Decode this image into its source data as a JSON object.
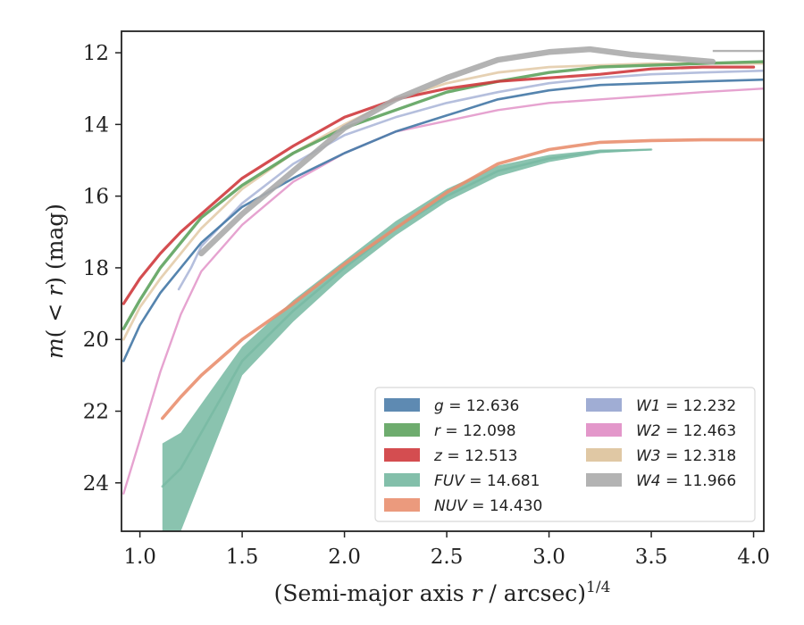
{
  "chart_data": {
    "type": "line",
    "xlabel": "(Semi-major axis r / arcsec)^{1/4}",
    "ylabel": "m(< r) (mag)",
    "xlim": [
      0.91,
      4.05
    ],
    "ylim": [
      25.35,
      11.4
    ],
    "y_inverted": true,
    "xticks": [
      "1.0",
      "1.5",
      "2.0",
      "2.5",
      "3.0",
      "3.5",
      "4.0"
    ],
    "yticks": [
      "12",
      "14",
      "16",
      "18",
      "20",
      "22",
      "24"
    ],
    "grid": false,
    "legend_position": "lower-right",
    "series": [
      {
        "name": "g = 12.636",
        "band": "g",
        "value": "12.636",
        "color": "#4c7daa",
        "x": [
          0.92,
          1.0,
          1.1,
          1.2,
          1.3,
          1.5,
          1.75,
          2.0,
          2.25,
          2.5,
          2.75,
          3.0,
          3.25,
          3.5,
          3.75,
          4.05
        ],
        "y": [
          20.6,
          19.6,
          18.7,
          18.0,
          17.3,
          16.3,
          15.5,
          14.8,
          14.2,
          13.75,
          13.3,
          13.05,
          12.9,
          12.85,
          12.8,
          12.75
        ]
      },
      {
        "name": "r = 12.098",
        "band": "r",
        "value": "12.098",
        "color": "#5ea35e",
        "x": [
          0.92,
          1.0,
          1.1,
          1.2,
          1.3,
          1.5,
          1.75,
          2.0,
          2.25,
          2.5,
          2.75,
          3.0,
          3.25,
          3.5,
          3.75,
          4.05
        ],
        "y": [
          19.7,
          18.9,
          18.0,
          17.3,
          16.6,
          15.7,
          14.8,
          14.1,
          13.6,
          13.1,
          12.8,
          12.55,
          12.4,
          12.35,
          12.3,
          12.25
        ]
      },
      {
        "name": "z = 12.513",
        "band": "z",
        "value": "12.513",
        "color": "#cf3a3d",
        "x": [
          0.92,
          1.0,
          1.1,
          1.2,
          1.3,
          1.5,
          1.75,
          2.0,
          2.25,
          2.5,
          2.75,
          3.0,
          3.25,
          3.5,
          3.75,
          4.0
        ],
        "y": [
          19.0,
          18.3,
          17.6,
          17.0,
          16.5,
          15.5,
          14.6,
          13.8,
          13.3,
          13.0,
          12.8,
          12.7,
          12.6,
          12.45,
          12.4,
          12.4
        ]
      },
      {
        "name": "FUV = 14.681",
        "band": "FUV",
        "value": "14.681",
        "color": "#75b8a1",
        "x": [
          1.11,
          1.2,
          1.3,
          1.5,
          1.75,
          2.0,
          2.25,
          2.5,
          2.75,
          3.0,
          3.25,
          3.5
        ],
        "y": [
          24.1,
          23.6,
          22.6,
          20.6,
          19.2,
          18.0,
          16.9,
          16.0,
          15.3,
          14.95,
          14.75,
          14.7
        ],
        "y_upper": [
          22.9,
          22.6,
          21.8,
          20.2,
          18.9,
          17.8,
          16.7,
          15.8,
          15.15,
          14.85,
          14.7,
          14.68
        ],
        "y_lower": [
          25.35,
          25.35,
          23.9,
          21.0,
          19.5,
          18.2,
          17.1,
          16.15,
          15.45,
          15.05,
          14.8,
          14.72
        ]
      },
      {
        "name": "NUV = 14.430",
        "band": "NUV",
        "value": "14.430",
        "color": "#e98f6f",
        "x": [
          1.11,
          1.2,
          1.3,
          1.5,
          1.75,
          2.0,
          2.25,
          2.5,
          2.75,
          3.0,
          3.25,
          3.5,
          3.75,
          4.05
        ],
        "y": [
          22.2,
          21.6,
          21.0,
          20.0,
          19.0,
          17.9,
          16.9,
          15.9,
          15.1,
          14.7,
          14.5,
          14.45,
          14.43,
          14.43
        ]
      },
      {
        "name": "W1 = 12.232",
        "band": "W1",
        "value": "12.232",
        "color": "#96a4cf",
        "x": [
          1.19,
          1.25,
          1.3,
          1.5,
          1.75,
          2.0,
          2.25,
          2.5,
          2.75,
          3.0,
          3.25,
          3.5,
          3.75,
          4.05
        ],
        "y": [
          18.6,
          18.0,
          17.4,
          16.2,
          15.1,
          14.3,
          13.8,
          13.4,
          13.1,
          12.85,
          12.7,
          12.6,
          12.55,
          12.5
        ]
      },
      {
        "name": "W2 = 12.463",
        "band": "W2",
        "value": "12.463",
        "color": "#e08cc4",
        "x": [
          0.92,
          1.0,
          1.1,
          1.2,
          1.3,
          1.5,
          1.75,
          2.0,
          2.25,
          2.5,
          2.75,
          3.0,
          3.25,
          3.5,
          3.75,
          4.05
        ],
        "y": [
          24.3,
          22.8,
          20.9,
          19.3,
          18.1,
          16.8,
          15.6,
          14.8,
          14.2,
          13.9,
          13.6,
          13.4,
          13.3,
          13.2,
          13.1,
          13.0
        ]
      },
      {
        "name": "W3 = 12.318",
        "band": "W3",
        "value": "12.318",
        "color": "#ddc29a",
        "x": [
          0.92,
          1.0,
          1.1,
          1.2,
          1.3,
          1.5,
          1.75,
          2.0,
          2.25,
          2.5,
          2.75,
          3.0,
          3.25,
          3.5,
          3.75,
          4.05
        ],
        "y": [
          20.0,
          19.1,
          18.3,
          17.6,
          16.9,
          15.8,
          14.8,
          14.0,
          13.3,
          12.85,
          12.55,
          12.4,
          12.35,
          12.3,
          12.3,
          12.3
        ]
      },
      {
        "name": "W4 = 11.966",
        "band": "W4",
        "value": "11.966",
        "color": "#ababab",
        "x": [
          1.3,
          1.5,
          1.75,
          2.0,
          2.25,
          2.5,
          2.75,
          3.0,
          3.2,
          3.4,
          3.6,
          3.8
        ],
        "y": [
          17.6,
          16.5,
          15.3,
          14.1,
          13.3,
          12.7,
          12.2,
          11.98,
          11.9,
          12.05,
          12.15,
          12.25
        ],
        "y_extended": [
          11.95,
          11.95
        ],
        "x_extended": [
          3.8,
          4.05
        ]
      }
    ]
  }
}
